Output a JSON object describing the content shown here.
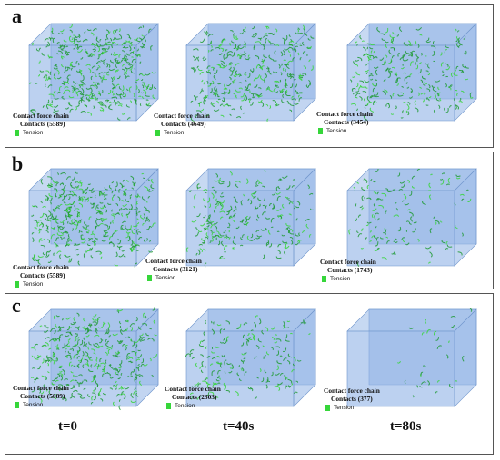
{
  "legend_title": "Contact force chain",
  "legend_tension": "Tension",
  "colors": {
    "box_face": "#8fb3e6",
    "box_edge": "#6f95cc",
    "chain": "#1e9a34",
    "tension": "#36d63a"
  },
  "panels": [
    {
      "label": "a",
      "contacts": [
        "Contacts (5589)",
        "Contacts (4649)",
        "Contacts (3454)"
      ],
      "density": [
        5589,
        4649,
        3454
      ]
    },
    {
      "label": "b",
      "contacts": [
        "Contacts (5589)",
        "Contacts (3121)",
        "Contacts (1743)"
      ],
      "density": [
        5589,
        3121,
        1743
      ]
    },
    {
      "label": "c",
      "contacts": [
        "Contacts (5089)",
        "Contacts (2303)",
        "Contacts (377)"
      ],
      "density": [
        5089,
        2303,
        377
      ]
    }
  ],
  "time_labels": [
    "t=0",
    "t=40s",
    "t=80s"
  ]
}
